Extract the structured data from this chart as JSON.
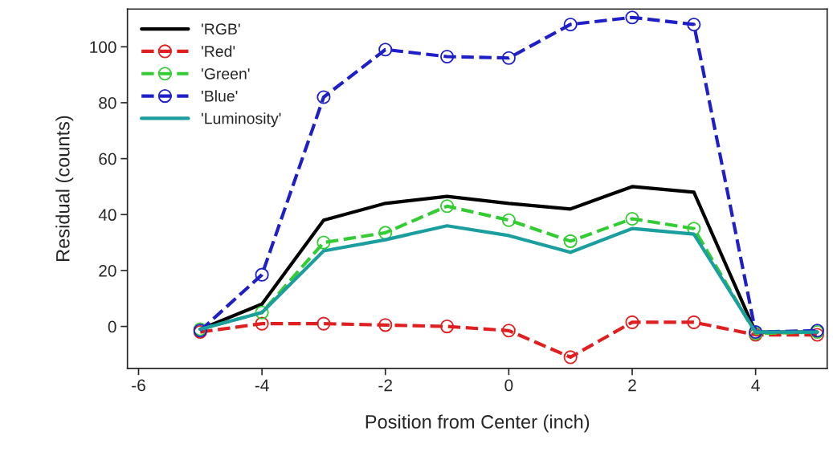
{
  "chart_data": {
    "type": "line",
    "xlabel": "Position from Center (inch)",
    "ylabel": "Residual (counts)",
    "x": [
      -5,
      -4,
      -3,
      -2,
      -1,
      0,
      1,
      2,
      3,
      4,
      5
    ],
    "series": [
      {
        "name": "'RGB'",
        "color": "#000000",
        "line_style": "solid",
        "marker": "none",
        "values": [
          -1,
          8,
          38,
          44,
          46.5,
          44,
          42,
          50,
          48,
          -2,
          -2
        ]
      },
      {
        "name": "'Red'",
        "color": "#e02020",
        "line_style": "dashed",
        "marker": "circle",
        "values": [
          -2,
          1,
          1,
          0.5,
          0,
          -1.5,
          -11,
          1.5,
          1.5,
          -3,
          -3
        ]
      },
      {
        "name": "'Green'",
        "color": "#33cc33",
        "line_style": "dashed",
        "marker": "circle",
        "values": [
          -1,
          5,
          30,
          33.5,
          43,
          38,
          30.5,
          38.5,
          35,
          -2.5,
          -2
        ]
      },
      {
        "name": "'Blue'",
        "color": "#1f1fc8",
        "line_style": "dashed",
        "marker": "circle",
        "values": [
          -1.5,
          18.5,
          82,
          99,
          96.5,
          96,
          108,
          110.5,
          108,
          -2,
          -1.5
        ]
      },
      {
        "name": "'Luminosity'",
        "color": "#1a9e9e",
        "line_style": "solid",
        "marker": "none",
        "values": [
          -1,
          5,
          27,
          31,
          36,
          32.5,
          26.5,
          35,
          33,
          -2,
          -2
        ]
      }
    ],
    "xlim": [
      -6.18,
      5.16
    ],
    "ylim": [
      -15,
      113.5
    ],
    "xticks": [
      -6,
      -4,
      -2,
      0,
      2,
      4
    ],
    "yticks": [
      0,
      20,
      40,
      60,
      80,
      100
    ],
    "grid": false,
    "legend": "top left"
  }
}
